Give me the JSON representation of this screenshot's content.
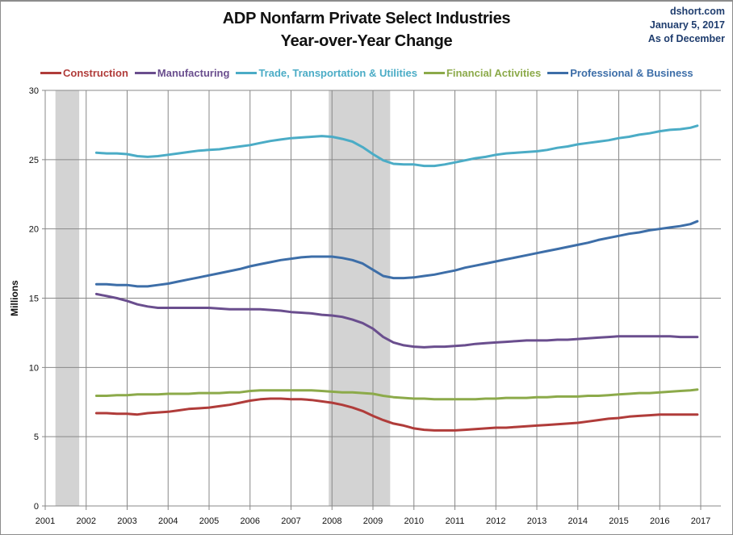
{
  "header": {
    "title_line1": "ADP Nonfarm Private Select Industries",
    "title_line2": "Year-over-Year Change",
    "source_line1": "dshort.com",
    "source_line2": "January 5, 2017",
    "source_line3": "As of December"
  },
  "chart_data": {
    "type": "line",
    "title": "ADP Nonfarm Private Select Industries Year-over-Year Change",
    "xlabel": "",
    "ylabel": "Millions",
    "xlim": [
      2001,
      2017
    ],
    "ylim": [
      0,
      30
    ],
    "x_ticks": [
      2001,
      2002,
      2003,
      2004,
      2005,
      2006,
      2007,
      2008,
      2009,
      2010,
      2011,
      2012,
      2013,
      2014,
      2015,
      2016,
      2017
    ],
    "y_ticks": [
      0,
      5,
      10,
      15,
      20,
      25,
      30
    ],
    "grid": true,
    "legend_position": "top",
    "recessions": [
      {
        "start": 2001.25,
        "end": 2001.83
      },
      {
        "start": 2007.92,
        "end": 2009.42
      }
    ],
    "x": [
      2002.25,
      2002.5,
      2002.75,
      2003.0,
      2003.25,
      2003.5,
      2003.75,
      2004.0,
      2004.25,
      2004.5,
      2004.75,
      2005.0,
      2005.25,
      2005.5,
      2005.75,
      2006.0,
      2006.25,
      2006.5,
      2006.75,
      2007.0,
      2007.25,
      2007.5,
      2007.75,
      2008.0,
      2008.25,
      2008.5,
      2008.75,
      2009.0,
      2009.25,
      2009.5,
      2009.75,
      2010.0,
      2010.25,
      2010.5,
      2010.75,
      2011.0,
      2011.25,
      2011.5,
      2011.75,
      2012.0,
      2012.25,
      2012.5,
      2012.75,
      2013.0,
      2013.25,
      2013.5,
      2013.75,
      2014.0,
      2014.25,
      2014.5,
      2014.75,
      2015.0,
      2015.25,
      2015.5,
      2015.75,
      2016.0,
      2016.25,
      2016.5,
      2016.75,
      2016.92
    ],
    "series": [
      {
        "name": "Construction",
        "color": "#b03c3a",
        "values": [
          6.7,
          6.7,
          6.65,
          6.65,
          6.6,
          6.7,
          6.75,
          6.8,
          6.9,
          7.0,
          7.05,
          7.1,
          7.2,
          7.3,
          7.45,
          7.6,
          7.7,
          7.75,
          7.75,
          7.7,
          7.7,
          7.65,
          7.55,
          7.45,
          7.3,
          7.1,
          6.85,
          6.5,
          6.2,
          5.95,
          5.8,
          5.6,
          5.5,
          5.45,
          5.45,
          5.45,
          5.5,
          5.55,
          5.6,
          5.65,
          5.65,
          5.7,
          5.75,
          5.8,
          5.85,
          5.9,
          5.95,
          6.0,
          6.1,
          6.2,
          6.3,
          6.35,
          6.45,
          6.5,
          6.55,
          6.6,
          6.6,
          6.6,
          6.6,
          6.6
        ]
      },
      {
        "name": "Manufacturing",
        "color": "#6a4e8e",
        "values": [
          15.3,
          15.15,
          15.0,
          14.8,
          14.55,
          14.4,
          14.3,
          14.3,
          14.3,
          14.3,
          14.3,
          14.3,
          14.25,
          14.2,
          14.2,
          14.2,
          14.2,
          14.15,
          14.1,
          14.0,
          13.95,
          13.9,
          13.8,
          13.75,
          13.65,
          13.45,
          13.2,
          12.8,
          12.2,
          11.8,
          11.6,
          11.5,
          11.45,
          11.5,
          11.5,
          11.55,
          11.6,
          11.7,
          11.75,
          11.8,
          11.85,
          11.9,
          11.95,
          11.95,
          11.95,
          12.0,
          12.0,
          12.05,
          12.1,
          12.15,
          12.2,
          12.25,
          12.25,
          12.25,
          12.25,
          12.25,
          12.25,
          12.2,
          12.2,
          12.2
        ]
      },
      {
        "name": "Trade, Transportation & Utilities",
        "color": "#4bacc6",
        "values": [
          25.5,
          25.45,
          25.45,
          25.4,
          25.25,
          25.2,
          25.25,
          25.35,
          25.45,
          25.55,
          25.65,
          25.7,
          25.75,
          25.85,
          25.95,
          26.05,
          26.2,
          26.35,
          26.45,
          26.55,
          26.6,
          26.65,
          26.7,
          26.65,
          26.5,
          26.3,
          25.9,
          25.4,
          24.95,
          24.7,
          24.65,
          24.65,
          24.55,
          24.55,
          24.65,
          24.8,
          24.95,
          25.1,
          25.2,
          25.35,
          25.45,
          25.5,
          25.55,
          25.6,
          25.7,
          25.85,
          25.95,
          26.1,
          26.2,
          26.3,
          26.4,
          26.55,
          26.65,
          26.8,
          26.9,
          27.05,
          27.15,
          27.2,
          27.3,
          27.45
        ]
      },
      {
        "name": "Financial Activities",
        "color": "#8caa4a",
        "values": [
          7.95,
          7.95,
          8.0,
          8.0,
          8.05,
          8.05,
          8.05,
          8.1,
          8.1,
          8.1,
          8.15,
          8.15,
          8.15,
          8.2,
          8.2,
          8.3,
          8.35,
          8.35,
          8.35,
          8.35,
          8.35,
          8.35,
          8.3,
          8.25,
          8.2,
          8.2,
          8.15,
          8.1,
          7.95,
          7.85,
          7.8,
          7.75,
          7.75,
          7.7,
          7.7,
          7.7,
          7.7,
          7.7,
          7.75,
          7.75,
          7.8,
          7.8,
          7.8,
          7.85,
          7.85,
          7.9,
          7.9,
          7.9,
          7.95,
          7.95,
          8.0,
          8.05,
          8.1,
          8.15,
          8.15,
          8.2,
          8.25,
          8.3,
          8.35,
          8.4
        ]
      },
      {
        "name": "Professional & Business",
        "color": "#3d6ea8",
        "values": [
          16.0,
          16.0,
          15.95,
          15.95,
          15.85,
          15.85,
          15.95,
          16.05,
          16.2,
          16.35,
          16.5,
          16.65,
          16.8,
          16.95,
          17.1,
          17.3,
          17.45,
          17.6,
          17.75,
          17.85,
          17.95,
          18.0,
          18.0,
          18.0,
          17.9,
          17.75,
          17.5,
          17.05,
          16.6,
          16.45,
          16.45,
          16.5,
          16.6,
          16.7,
          16.85,
          17.0,
          17.2,
          17.35,
          17.5,
          17.65,
          17.8,
          17.95,
          18.1,
          18.25,
          18.4,
          18.55,
          18.7,
          18.85,
          19.0,
          19.2,
          19.35,
          19.5,
          19.65,
          19.75,
          19.9,
          20.0,
          20.1,
          20.2,
          20.35,
          20.55
        ]
      }
    ]
  }
}
